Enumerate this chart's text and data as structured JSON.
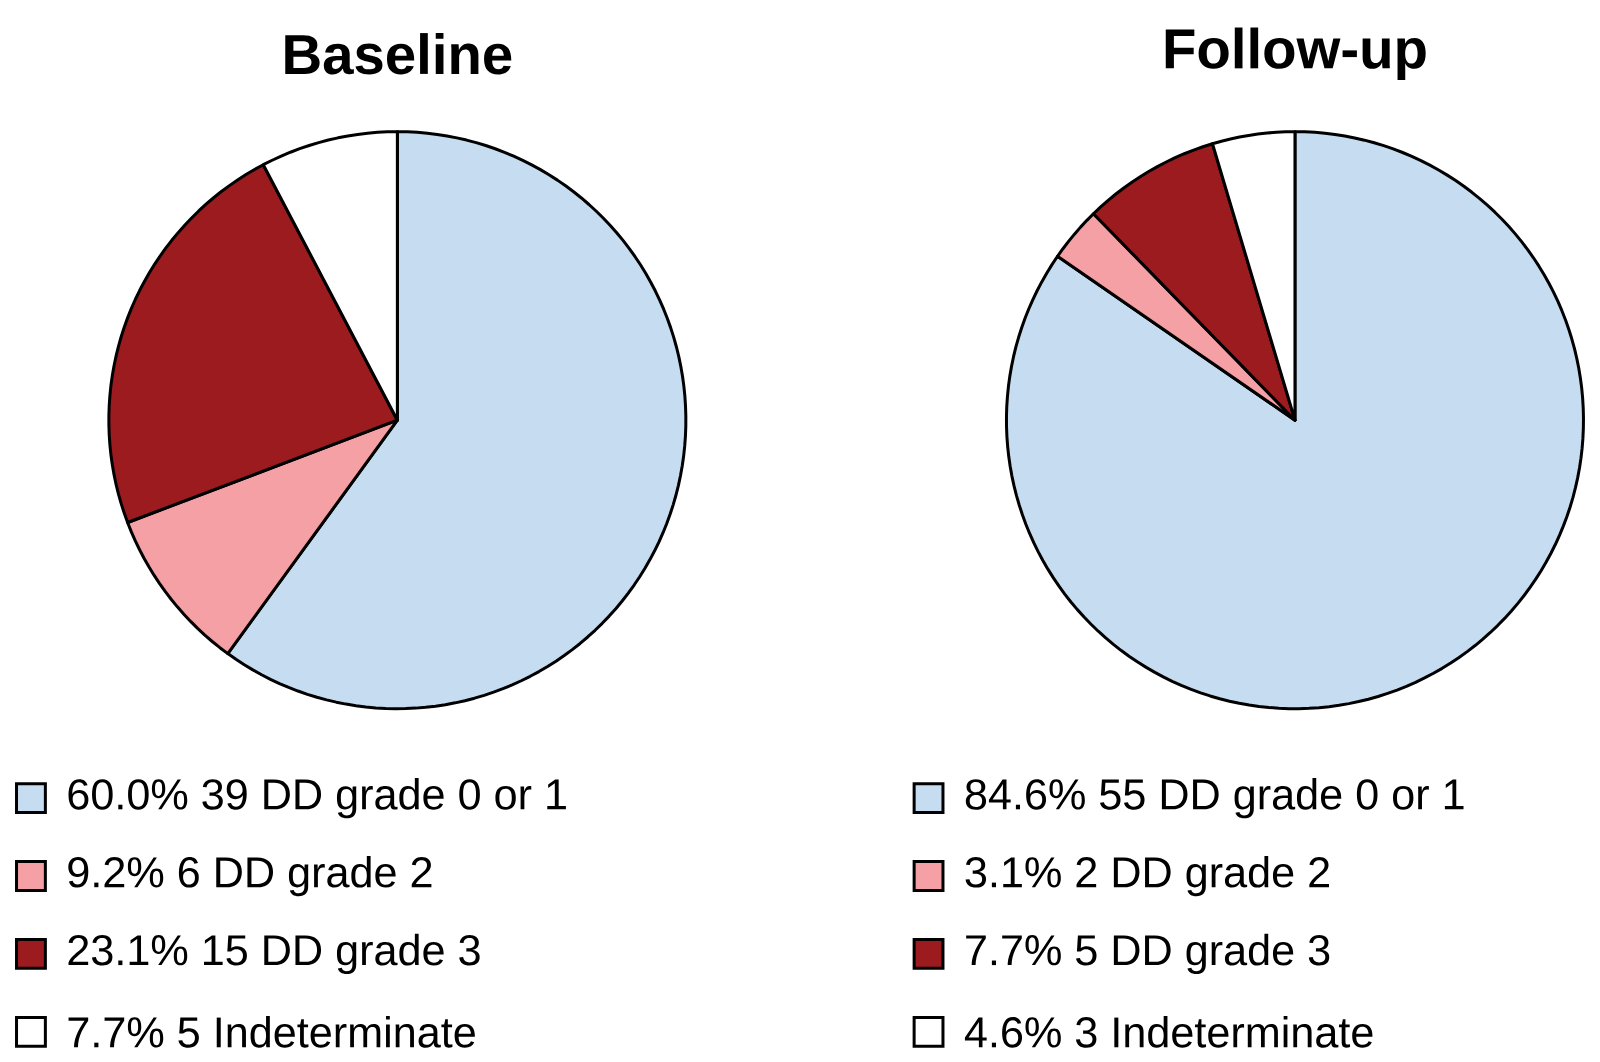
{
  "chart_data": [
    {
      "type": "pie",
      "title": "Baseline",
      "categories": [
        "60.0%  39 DD grade 0 or 1",
        "9.2%  6 DD grade 2",
        "23.1%  15 DD grade 3",
        "7.7%  5 Indeterminate"
      ],
      "values": [
        39,
        6,
        15,
        5
      ],
      "colors": [
        "#c6ddf1",
        "#f4a0a4",
        "#9b1b1f",
        "#ffffff"
      ],
      "legend": "bottom"
    },
    {
      "type": "pie",
      "title": "Follow-up",
      "categories": [
        "84.6%  55 DD grade 0 or 1",
        "3.1%  2 DD grade 2",
        "7.7%  5 DD grade 3",
        "4.6%  3 Indeterminate"
      ],
      "values": [
        55,
        2,
        5,
        3
      ],
      "colors": [
        "#c6ddf1",
        "#f4a0a4",
        "#9b1b1f",
        "#ffffff"
      ],
      "legend": "bottom"
    }
  ]
}
